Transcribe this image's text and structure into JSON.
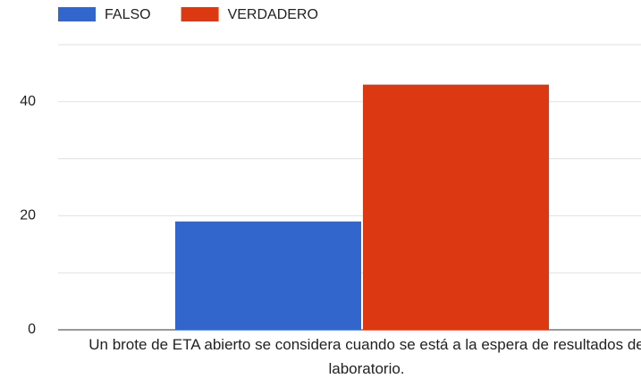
{
  "chart_data": {
    "type": "bar",
    "categories": [
      "Un brote de ETA abierto se considera cuando se está a la espera de resultados de laboratorio."
    ],
    "series": [
      {
        "name": "FALSO",
        "color": "#3366cc",
        "values": [
          19
        ]
      },
      {
        "name": "VERDADERO",
        "color": "#dc3912",
        "values": [
          43
        ]
      }
    ],
    "ylim": [
      0,
      50
    ],
    "yticks": [
      0,
      20,
      40
    ],
    "grid_yticks": [
      0,
      10,
      20,
      30,
      40,
      50
    ],
    "grid": true,
    "legend": "top"
  }
}
